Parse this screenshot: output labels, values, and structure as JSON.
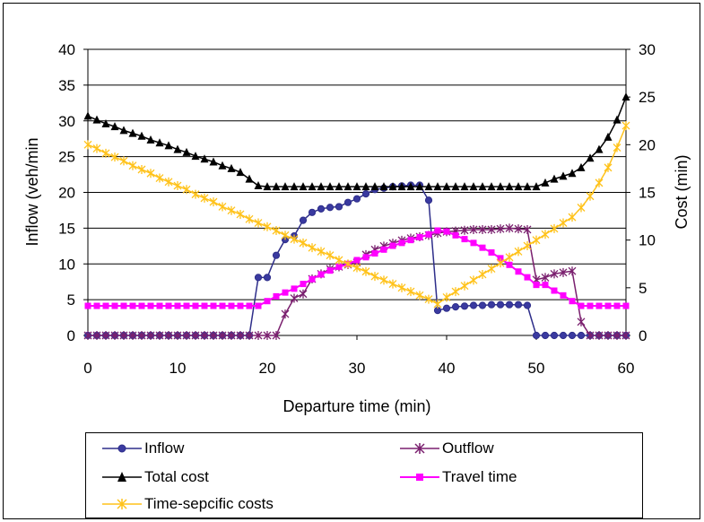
{
  "chart_data": {
    "type": "line",
    "xlabel": "Departure time (min)",
    "ylabel_left": "Inflow (veh/min",
    "ylabel_right": "Cost (min)",
    "xlim": [
      0,
      60
    ],
    "ylim_left": [
      0,
      40
    ],
    "ylim_right": [
      0,
      30
    ],
    "x_ticks": [
      0,
      10,
      20,
      30,
      40,
      50,
      60
    ],
    "y_left_ticks": [
      0,
      5,
      10,
      15,
      20,
      25,
      30,
      35,
      40
    ],
    "y_right_ticks": [
      0,
      5,
      10,
      15,
      20,
      25,
      30
    ],
    "grid": "horizontal",
    "legend_position": "bottom",
    "series": [
      {
        "name": "Inflow",
        "axis": "left",
        "color": "#2E2E8A",
        "marker": "circle",
        "x": [
          0,
          1,
          2,
          3,
          4,
          5,
          6,
          7,
          8,
          9,
          10,
          11,
          12,
          13,
          14,
          15,
          16,
          17,
          18,
          19,
          20,
          21,
          22,
          23,
          24,
          25,
          26,
          27,
          28,
          29,
          30,
          31,
          32,
          33,
          34,
          35,
          36,
          37,
          38,
          39,
          40,
          41,
          42,
          43,
          44,
          45,
          46,
          47,
          48,
          49,
          50,
          51,
          52,
          53,
          54,
          55,
          56,
          57,
          58,
          59,
          60
        ],
        "values": [
          0,
          0,
          0,
          0,
          0,
          0,
          0,
          0,
          0,
          0,
          0,
          0,
          0,
          0,
          0,
          0,
          0,
          0,
          0,
          8.1,
          8.1,
          11.2,
          13.4,
          13.9,
          16.1,
          17.2,
          17.7,
          17.9,
          18.0,
          18.6,
          19.1,
          19.8,
          20.4,
          20.6,
          20.8,
          20.9,
          21.0,
          21.0,
          18.9,
          3.5,
          3.8,
          4.0,
          4.1,
          4.2,
          4.2,
          4.3,
          4.3,
          4.3,
          4.3,
          4.2,
          0,
          0,
          0,
          0,
          0,
          0,
          0,
          0,
          0,
          0,
          0
        ]
      },
      {
        "name": "Outflow",
        "axis": "left",
        "color": "#7A1F6E",
        "marker": "star",
        "x": [
          0,
          1,
          2,
          3,
          4,
          5,
          6,
          7,
          8,
          9,
          10,
          11,
          12,
          13,
          14,
          15,
          16,
          17,
          18,
          19,
          20,
          21,
          22,
          23,
          24,
          25,
          26,
          27,
          28,
          29,
          30,
          31,
          32,
          33,
          34,
          35,
          36,
          37,
          38,
          39,
          40,
          41,
          42,
          43,
          44,
          45,
          46,
          47,
          48,
          49,
          50,
          51,
          52,
          53,
          54,
          55,
          56,
          57,
          58,
          59,
          60
        ],
        "values": [
          0,
          0,
          0,
          0,
          0,
          0,
          0,
          0,
          0,
          0,
          0,
          0,
          0,
          0,
          0,
          0,
          0,
          0,
          0,
          0,
          0,
          0,
          3.0,
          5.2,
          5.8,
          7.9,
          8.6,
          9.3,
          9.6,
          9.9,
          10.2,
          11.3,
          12.0,
          12.5,
          12.9,
          13.3,
          13.6,
          13.8,
          14.0,
          14.3,
          14.5,
          14.6,
          14.7,
          14.8,
          14.8,
          14.8,
          14.9,
          15.0,
          14.9,
          14.8,
          7.8,
          8.1,
          8.6,
          8.8,
          9.0,
          1.9,
          0,
          0,
          0,
          0,
          0
        ]
      },
      {
        "name": "Total cost",
        "axis": "right",
        "color": "#000000",
        "marker": "triangle",
        "x": [
          0,
          1,
          2,
          3,
          4,
          5,
          6,
          7,
          8,
          9,
          10,
          11,
          12,
          13,
          14,
          15,
          16,
          17,
          18,
          19,
          20,
          21,
          22,
          23,
          24,
          25,
          26,
          27,
          28,
          29,
          30,
          31,
          32,
          33,
          34,
          35,
          36,
          37,
          38,
          39,
          40,
          41,
          42,
          43,
          44,
          45,
          46,
          47,
          48,
          49,
          50,
          51,
          52,
          53,
          54,
          55,
          56,
          57,
          58,
          59,
          60
        ],
        "values": [
          23.0,
          22.6,
          22.2,
          21.9,
          21.5,
          21.2,
          20.9,
          20.5,
          20.2,
          19.9,
          19.5,
          19.2,
          18.8,
          18.5,
          18.2,
          17.8,
          17.5,
          17.1,
          16.4,
          15.7,
          15.6,
          15.6,
          15.6,
          15.6,
          15.6,
          15.6,
          15.6,
          15.6,
          15.6,
          15.6,
          15.6,
          15.6,
          15.6,
          15.6,
          15.6,
          15.6,
          15.6,
          15.6,
          15.6,
          15.6,
          15.6,
          15.6,
          15.6,
          15.6,
          15.6,
          15.6,
          15.6,
          15.6,
          15.6,
          15.6,
          15.6,
          16.0,
          16.4,
          16.7,
          17.0,
          17.6,
          18.6,
          19.5,
          20.8,
          22.6,
          25.0
        ]
      },
      {
        "name": "Travel time",
        "axis": "right",
        "color": "#FF00FF",
        "marker": "square",
        "x": [
          0,
          1,
          2,
          3,
          4,
          5,
          6,
          7,
          8,
          9,
          10,
          11,
          12,
          13,
          14,
          15,
          16,
          17,
          18,
          19,
          20,
          21,
          22,
          23,
          24,
          25,
          26,
          27,
          28,
          29,
          30,
          31,
          32,
          33,
          34,
          35,
          36,
          37,
          38,
          39,
          40,
          41,
          42,
          43,
          44,
          45,
          46,
          47,
          48,
          49,
          50,
          51,
          52,
          53,
          54,
          55,
          56,
          57,
          58,
          59,
          60
        ],
        "values": [
          3.1,
          3.1,
          3.1,
          3.1,
          3.1,
          3.1,
          3.1,
          3.1,
          3.1,
          3.1,
          3.1,
          3.1,
          3.1,
          3.1,
          3.1,
          3.1,
          3.1,
          3.1,
          3.1,
          3.1,
          3.6,
          4.1,
          4.5,
          4.9,
          5.4,
          5.9,
          6.4,
          6.8,
          7.2,
          7.5,
          7.9,
          8.2,
          8.6,
          9.0,
          9.4,
          9.7,
          10.0,
          10.3,
          10.6,
          11.0,
          10.9,
          10.5,
          10.1,
          9.7,
          9.2,
          8.7,
          8.1,
          7.4,
          6.7,
          6.1,
          5.3,
          5.3,
          4.7,
          4.2,
          3.6,
          3.1,
          3.1,
          3.1,
          3.1,
          3.1,
          3.1
        ]
      },
      {
        "name": "Time-sepcific costs",
        "axis": "right",
        "color": "#FFC21A",
        "marker": "x",
        "x": [
          0,
          1,
          2,
          3,
          4,
          5,
          6,
          7,
          8,
          9,
          10,
          11,
          12,
          13,
          14,
          15,
          16,
          17,
          18,
          19,
          20,
          21,
          22,
          23,
          24,
          25,
          26,
          27,
          28,
          29,
          30,
          31,
          32,
          33,
          34,
          35,
          36,
          37,
          38,
          39,
          40,
          41,
          42,
          43,
          44,
          45,
          46,
          47,
          48,
          49,
          50,
          51,
          52,
          53,
          54,
          55,
          56,
          57,
          58,
          59,
          60
        ],
        "values": [
          20.0,
          19.6,
          19.1,
          18.7,
          18.3,
          17.8,
          17.4,
          17.0,
          16.5,
          16.1,
          15.7,
          15.3,
          14.8,
          14.4,
          14.0,
          13.5,
          13.1,
          12.7,
          12.2,
          11.8,
          11.4,
          11.0,
          10.5,
          10.1,
          9.7,
          9.2,
          8.8,
          8.4,
          7.9,
          7.5,
          7.1,
          6.7,
          6.2,
          5.8,
          5.4,
          5.0,
          4.6,
          4.2,
          3.8,
          3.3,
          4.0,
          4.6,
          5.2,
          5.8,
          6.4,
          7.0,
          7.6,
          8.2,
          8.8,
          9.4,
          10.0,
          10.6,
          11.2,
          11.8,
          12.4,
          13.4,
          14.6,
          16.0,
          17.6,
          19.7,
          22.0
        ]
      }
    ]
  },
  "legend": {
    "inflow": "Inflow",
    "outflow": "Outflow",
    "total_cost": "Total cost",
    "travel_time": "Travel time",
    "time_specific_costs": "Time-sepcific costs"
  }
}
